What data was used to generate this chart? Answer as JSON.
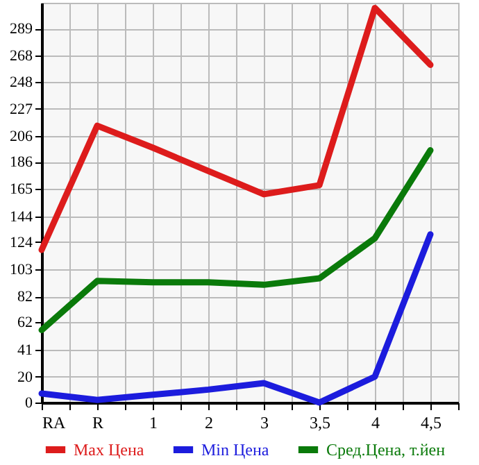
{
  "chart_data": {
    "type": "line",
    "categories": [
      "RA",
      "R",
      "1",
      "2",
      "3",
      "3,5",
      "4",
      "4,5"
    ],
    "series": [
      {
        "name": "Max Цена",
        "color": "#dd1c1c",
        "values": [
          118,
          214,
          197,
          179,
          161,
          168,
          305,
          261
        ]
      },
      {
        "name": "Min Цена",
        "color": "#1c1cdd",
        "values": [
          7,
          2,
          6,
          10,
          15,
          0,
          20,
          130
        ]
      },
      {
        "name": "Сред.Цена, т.йен",
        "color": "#0a7a0a",
        "values": [
          56,
          94,
          93,
          93,
          91,
          96,
          127,
          195
        ]
      }
    ],
    "ylim": [
      0,
      309
    ],
    "yticks": [
      0,
      20,
      41,
      62,
      82,
      103,
      124,
      144,
      165,
      186,
      206,
      227,
      248,
      268,
      289
    ],
    "grid": true,
    "legend": "bottom"
  }
}
